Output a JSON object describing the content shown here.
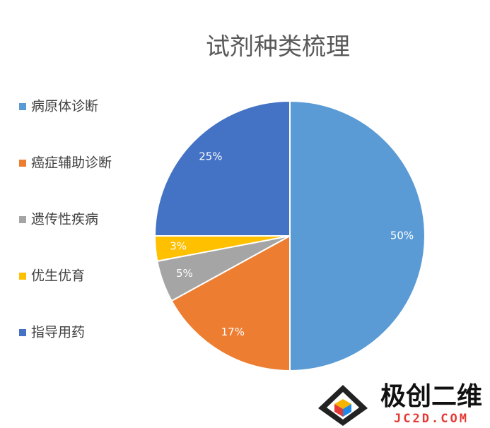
{
  "chart_data": {
    "type": "pie",
    "title": "试剂种类梳理",
    "categories": [
      "病原体诊断",
      "癌症辅助诊断",
      "遗传性疾病",
      "优生优育",
      "指导用药"
    ],
    "values": [
      50,
      17,
      5,
      3,
      25
    ],
    "value_labels": [
      "50%",
      "17%",
      "5%",
      "3%",
      "25%"
    ],
    "colors": [
      "#5b9bd5",
      "#ed7d31",
      "#a5a5a5",
      "#ffc000",
      "#4472c4"
    ],
    "legend": "left"
  },
  "watermark": {
    "name": "极创二维",
    "url": "JC2D.COM"
  }
}
